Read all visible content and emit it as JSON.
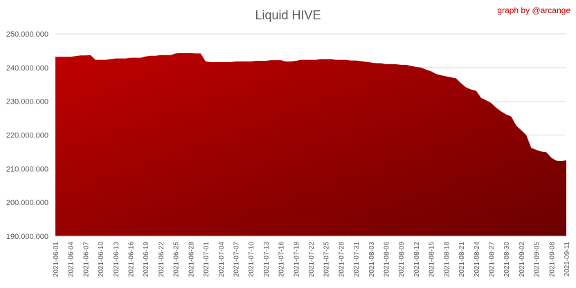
{
  "credit": "graph by @arcange",
  "colors": {
    "fill_top": "#c00000",
    "fill_bottom": "#6b0000",
    "gridline": "#d9d9d9",
    "text": "#595959",
    "credit": "#c00000"
  },
  "chart_data": {
    "type": "area",
    "title": "Liquid HIVE",
    "xlabel": "",
    "ylabel": "",
    "ylim": [
      190000000,
      250000000
    ],
    "yticks": [
      190000000,
      200000000,
      210000000,
      220000000,
      230000000,
      240000000,
      250000000
    ],
    "ytick_labels": [
      "190.000.000",
      "200.000.000",
      "210.000.000",
      "220.000.000",
      "230.000.000",
      "240.000.000",
      "250.000.000"
    ],
    "grid": true,
    "x": [
      "2021-06-01",
      "2021-06-02",
      "2021-06-03",
      "2021-06-04",
      "2021-06-05",
      "2021-06-06",
      "2021-06-07",
      "2021-06-08",
      "2021-06-09",
      "2021-06-10",
      "2021-06-11",
      "2021-06-12",
      "2021-06-13",
      "2021-06-14",
      "2021-06-15",
      "2021-06-16",
      "2021-06-17",
      "2021-06-18",
      "2021-06-19",
      "2021-06-20",
      "2021-06-21",
      "2021-06-22",
      "2021-06-23",
      "2021-06-24",
      "2021-06-25",
      "2021-06-26",
      "2021-06-27",
      "2021-06-28",
      "2021-06-29",
      "2021-06-30",
      "2021-07-01",
      "2021-07-02",
      "2021-07-03",
      "2021-07-04",
      "2021-07-05",
      "2021-07-06",
      "2021-07-07",
      "2021-07-08",
      "2021-07-09",
      "2021-07-10",
      "2021-07-11",
      "2021-07-12",
      "2021-07-13",
      "2021-07-14",
      "2021-07-15",
      "2021-07-16",
      "2021-07-17",
      "2021-07-18",
      "2021-07-19",
      "2021-07-20",
      "2021-07-21",
      "2021-07-22",
      "2021-07-23",
      "2021-07-24",
      "2021-07-25",
      "2021-07-26",
      "2021-07-27",
      "2021-07-28",
      "2021-07-29",
      "2021-07-30",
      "2021-07-31",
      "2021-08-01",
      "2021-08-02",
      "2021-08-03",
      "2021-08-04",
      "2021-08-05",
      "2021-08-06",
      "2021-08-07",
      "2021-08-08",
      "2021-08-09",
      "2021-08-10",
      "2021-08-11",
      "2021-08-12",
      "2021-08-13",
      "2021-08-14",
      "2021-08-15",
      "2021-08-16",
      "2021-08-17",
      "2021-08-18",
      "2021-08-19",
      "2021-08-20",
      "2021-08-21",
      "2021-08-22",
      "2021-08-23",
      "2021-08-24",
      "2021-08-25",
      "2021-08-26",
      "2021-08-27",
      "2021-08-28",
      "2021-08-29",
      "2021-08-30",
      "2021-08-31",
      "2021-09-01",
      "2021-09-02",
      "2021-09-03",
      "2021-09-04",
      "2021-09-05",
      "2021-09-06",
      "2021-09-07",
      "2021-09-08",
      "2021-09-09",
      "2021-09-10",
      "2021-09-11"
    ],
    "xtick_labels": [
      "2021-06-01",
      "2021-06-04",
      "2021-06-07",
      "2021-06-10",
      "2021-06-13",
      "2021-06-16",
      "2021-06-19",
      "2021-06-22",
      "2021-06-25",
      "2021-06-28",
      "2021-07-01",
      "2021-07-04",
      "2021-07-07",
      "2021-07-10",
      "2021-07-13",
      "2021-07-16",
      "2021-07-19",
      "2021-07-22",
      "2021-07-25",
      "2021-07-28",
      "2021-07-31",
      "2021-08-03",
      "2021-08-06",
      "2021-08-09",
      "2021-08-12",
      "2021-08-15",
      "2021-08-18",
      "2021-08-21",
      "2021-08-24",
      "2021-08-27",
      "2021-08-30",
      "2021-09-02",
      "2021-09-05",
      "2021-09-08",
      "2021-09-11"
    ],
    "values": [
      243200000,
      243200000,
      243200000,
      243200000,
      243400000,
      243600000,
      243600000,
      243700000,
      242300000,
      242300000,
      242300000,
      242500000,
      242700000,
      242700000,
      242700000,
      242900000,
      242900000,
      242900000,
      243300000,
      243500000,
      243500000,
      243700000,
      243700000,
      243700000,
      244200000,
      244300000,
      244300000,
      244300000,
      244200000,
      244200000,
      241800000,
      241600000,
      241600000,
      241600000,
      241600000,
      241600000,
      241800000,
      241800000,
      241800000,
      241800000,
      242000000,
      242000000,
      242000000,
      242200000,
      242200000,
      242200000,
      241800000,
      241800000,
      242000000,
      242300000,
      242300000,
      242300000,
      242300000,
      242500000,
      242500000,
      242500000,
      242300000,
      242300000,
      242300000,
      242100000,
      242100000,
      241900000,
      241700000,
      241500000,
      241300000,
      241300000,
      241000000,
      241000000,
      241000000,
      240800000,
      240800000,
      240500000,
      240200000,
      240000000,
      239400000,
      238900000,
      238100000,
      237700000,
      237400000,
      237100000,
      236800000,
      235300000,
      234100000,
      233500000,
      233100000,
      231000000,
      230300000,
      229500000,
      228100000,
      227000000,
      226100000,
      225500000,
      222800000,
      221400000,
      220000000,
      216200000,
      215600000,
      215100000,
      214900000,
      213300000,
      212400000,
      212300000,
      212500000
    ]
  }
}
